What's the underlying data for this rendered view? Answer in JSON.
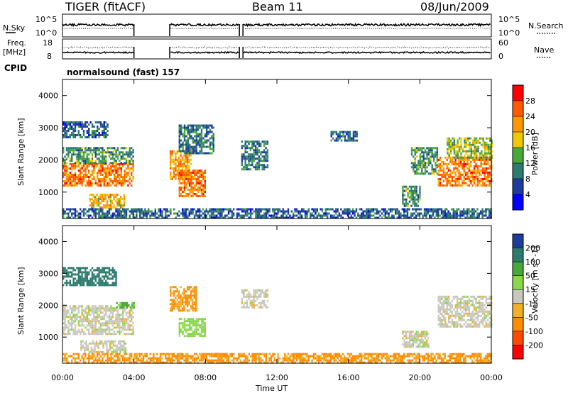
{
  "header": {
    "station": "TIGER (fitACF)",
    "beam": "Beam 11",
    "date": "08/Jun/2009"
  },
  "top_panels": {
    "left_labels": {
      "nsky": "N.Sky",
      "freq_line1": "Freq.",
      "freq_line2": "[MHz]",
      "cpid": "CPID"
    },
    "right_labels": {
      "nsearch": "N.Search",
      "nave": "Nave"
    },
    "nsky_ticks": {
      "top": "10^5",
      "bottom": "10^0"
    },
    "nsearch_ticks": {
      "top": "10^5",
      "bottom": "10^0"
    },
    "freq_ticks": {
      "top": "18",
      "bottom": "8"
    },
    "nave_ticks": {
      "top": "60",
      "bottom": "0"
    },
    "cpid_text": "normalsound (fast) 157",
    "data_gaps_hours": [
      [
        4.0,
        6.0
      ],
      [
        9.9,
        10.1
      ]
    ]
  },
  "power_colorbar": {
    "label": "Power [dB]",
    "ticks": [
      "28",
      "24",
      "20",
      "16",
      "12",
      "8",
      "4"
    ],
    "colors": [
      "#ff0000",
      "#ff5a00",
      "#ff9600",
      "#f0c800",
      "#48a83a",
      "#2d7a6e",
      "#1e3c9e",
      "#0000ff"
    ]
  },
  "velocity_colorbar": {
    "label": "Velocity [m s^-1]",
    "ticks": [
      "200",
      "100",
      "50",
      "15",
      "-15",
      "-50",
      "-100",
      "-200"
    ],
    "colors": [
      "#1e3c9e",
      "#2d7a6e",
      "#48a83a",
      "#88d84a",
      "#c8c8c0",
      "#f0b028",
      "#ff8c00",
      "#ff4800",
      "#ff0000"
    ]
  },
  "chart_data": [
    {
      "type": "heatmap",
      "name_hint": "power",
      "ylabel": "Slant Range [km]",
      "yticks": [
        "4000",
        "3000",
        "2000",
        "1000"
      ],
      "ylim": [
        180,
        4500
      ],
      "xlim": [
        0,
        24
      ],
      "xticks": [
        "00:00",
        "04:00",
        "08:00",
        "12:00",
        "16:00",
        "20:00",
        "00:00"
      ],
      "regions": [
        {
          "t": [
            0.0,
            4.0
          ],
          "r": [
            1200,
            1900
          ],
          "v": 24
        },
        {
          "t": [
            0.0,
            4.0
          ],
          "r": [
            1900,
            2400
          ],
          "v": 12
        },
        {
          "t": [
            0.0,
            2.5
          ],
          "r": [
            2700,
            3200
          ],
          "v": 8
        },
        {
          "t": [
            1.5,
            3.5
          ],
          "r": [
            500,
            950
          ],
          "v": 20
        },
        {
          "t": [
            6.0,
            7.2
          ],
          "r": [
            1400,
            2300
          ],
          "v": 22
        },
        {
          "t": [
            6.5,
            8.0
          ],
          "r": [
            900,
            1700
          ],
          "v": 24
        },
        {
          "t": [
            6.5,
            8.5
          ],
          "r": [
            2200,
            3100
          ],
          "v": 10
        },
        {
          "t": [
            10.0,
            11.5
          ],
          "r": [
            1700,
            2600
          ],
          "v": 10
        },
        {
          "t": [
            15.0,
            16.5
          ],
          "r": [
            2600,
            2900
          ],
          "v": 8
        },
        {
          "t": [
            19.0,
            20.0
          ],
          "r": [
            600,
            1200
          ],
          "v": 12
        },
        {
          "t": [
            19.5,
            21.0
          ],
          "r": [
            1600,
            2400
          ],
          "v": 12
        },
        {
          "t": [
            21.0,
            24.0
          ],
          "r": [
            1200,
            2100
          ],
          "v": 24
        },
        {
          "t": [
            21.5,
            24.0
          ],
          "r": [
            2100,
            2700
          ],
          "v": 16
        },
        {
          "t": [
            0.0,
            24.0
          ],
          "r": [
            200,
            500
          ],
          "v": 8
        }
      ]
    },
    {
      "type": "heatmap",
      "name_hint": "velocity",
      "ylabel": "Slant Range [km]",
      "yticks": [
        "4000",
        "3000",
        "2000",
        "1000"
      ],
      "ylim": [
        180,
        4500
      ],
      "xlim": [
        0,
        24
      ],
      "xticks": [
        "00:00",
        "04:00",
        "08:00",
        "12:00",
        "16:00",
        "20:00",
        "00:00"
      ],
      "xlabel": "Time UT",
      "regions": [
        {
          "t": [
            0.0,
            4.0
          ],
          "r": [
            1100,
            2000
          ],
          "v": 0
        },
        {
          "t": [
            0.0,
            3.0
          ],
          "r": [
            2600,
            3200
          ],
          "v": 150
        },
        {
          "t": [
            1.0,
            3.5
          ],
          "r": [
            500,
            900
          ],
          "v": 0
        },
        {
          "t": [
            3.0,
            4.0
          ],
          "r": [
            1900,
            2100
          ],
          "v": 60
        },
        {
          "t": [
            6.0,
            7.5
          ],
          "r": [
            1800,
            2600
          ],
          "v": -60
        },
        {
          "t": [
            6.5,
            8.0
          ],
          "r": [
            1000,
            1600
          ],
          "v": 30
        },
        {
          "t": [
            10.0,
            11.5
          ],
          "r": [
            1900,
            2500
          ],
          "v": 0
        },
        {
          "t": [
            19.0,
            20.5
          ],
          "r": [
            700,
            1200
          ],
          "v": 0
        },
        {
          "t": [
            21.0,
            24.0
          ],
          "r": [
            1300,
            2300
          ],
          "v": 0
        },
        {
          "t": [
            0.0,
            24.0
          ],
          "r": [
            200,
            500
          ],
          "v": -60
        }
      ]
    }
  ]
}
